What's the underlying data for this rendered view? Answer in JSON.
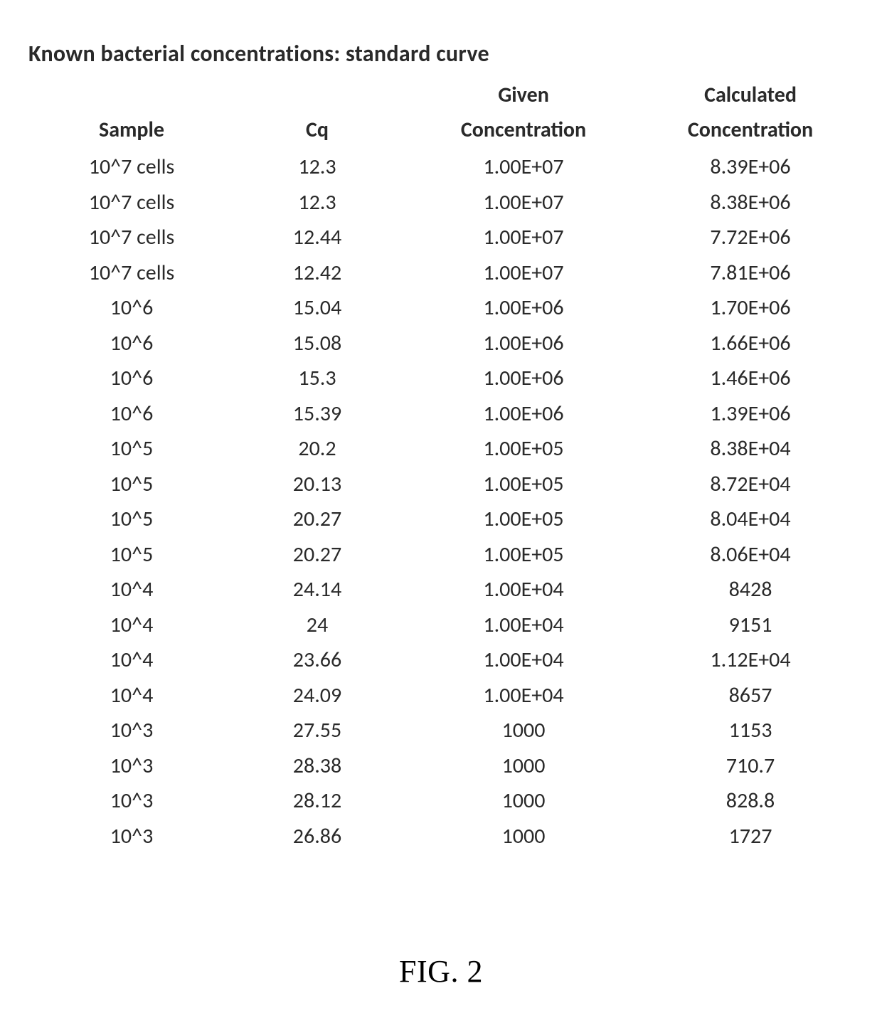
{
  "title": "Known bacterial concentrations:  standard curve",
  "table": {
    "type": "table",
    "background_color": "#ffffff",
    "text_color": "#2a2a2a",
    "header_fontsize": 30,
    "cell_fontsize": 30,
    "column_alignment": [
      "center",
      "center",
      "center",
      "center"
    ],
    "columns": [
      {
        "group": "",
        "label": "Sample"
      },
      {
        "group": "",
        "label": "Cq"
      },
      {
        "group": "Given",
        "label": "Concentration"
      },
      {
        "group": "Calculated",
        "label": "Concentration"
      }
    ],
    "rows": [
      [
        "10^7 cells",
        "12.3",
        "1.00E+07",
        "8.39E+06"
      ],
      [
        "10^7 cells",
        "12.3",
        "1.00E+07",
        "8.38E+06"
      ],
      [
        "10^7 cells",
        "12.44",
        "1.00E+07",
        "7.72E+06"
      ],
      [
        "10^7 cells",
        "12.42",
        "1.00E+07",
        "7.81E+06"
      ],
      [
        "10^6",
        "15.04",
        "1.00E+06",
        "1.70E+06"
      ],
      [
        "10^6",
        "15.08",
        "1.00E+06",
        "1.66E+06"
      ],
      [
        "10^6",
        "15.3",
        "1.00E+06",
        "1.46E+06"
      ],
      [
        "10^6",
        "15.39",
        "1.00E+06",
        "1.39E+06"
      ],
      [
        "10^5",
        "20.2",
        "1.00E+05",
        "8.38E+04"
      ],
      [
        "10^5",
        "20.13",
        "1.00E+05",
        "8.72E+04"
      ],
      [
        "10^5",
        "20.27",
        "1.00E+05",
        "8.04E+04"
      ],
      [
        "10^5",
        "20.27",
        "1.00E+05",
        "8.06E+04"
      ],
      [
        "10^4",
        "24.14",
        "1.00E+04",
        "8428"
      ],
      [
        "10^4",
        "24",
        "1.00E+04",
        "9151"
      ],
      [
        "10^4",
        "23.66",
        "1.00E+04",
        "1.12E+04"
      ],
      [
        "10^4",
        "24.09",
        "1.00E+04",
        "8657"
      ],
      [
        "10^3",
        "27.55",
        "1000",
        "1153"
      ],
      [
        "10^3",
        "28.38",
        "1000",
        "710.7"
      ],
      [
        "10^3",
        "28.12",
        "1000",
        "828.8"
      ],
      [
        "10^3",
        "26.86",
        "1000",
        "1727"
      ]
    ]
  },
  "figure_caption": "FIG. 2"
}
